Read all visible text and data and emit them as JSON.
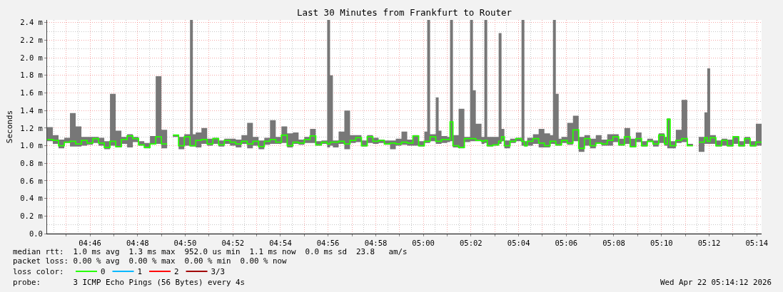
{
  "chart_data": {
    "type": "step",
    "title": "Last 30 Minutes from Frankfurt to Router",
    "ylabel": "Seconds",
    "x": [
      4.7367,
      4.7407,
      4.7447,
      4.7487,
      4.7527,
      4.7567,
      4.7607,
      4.7647,
      4.7687,
      4.7727,
      4.7767,
      4.7807,
      4.7847,
      4.7887,
      4.7927,
      4.7967,
      4.8007,
      4.8047,
      4.8087,
      4.8127,
      4.8167,
      4.8207,
      4.8227,
      4.8247,
      4.8287,
      4.8327,
      4.8367,
      4.8387,
      4.8407,
      4.8447,
      4.8487,
      4.8527,
      4.8567,
      4.8607,
      4.8647,
      4.8687,
      4.8727,
      4.8767,
      4.8807,
      4.8847,
      4.8887,
      4.8927,
      4.8967,
      4.9007,
      4.9047,
      4.9087,
      4.9127,
      4.9167,
      4.9207,
      4.9247,
      4.9287,
      4.9327,
      4.9347,
      4.9367,
      4.9407,
      4.9447,
      4.9487,
      4.9527,
      4.9567,
      4.9607,
      4.9647,
      4.9687,
      4.9727,
      4.9767,
      4.9807,
      4.9847,
      4.9887,
      4.9927,
      4.9967,
      5.0007,
      5.0027,
      5.0047,
      5.0087,
      5.0107,
      5.0127,
      5.0167,
      5.0187,
      5.0207,
      5.0247,
      5.0287,
      5.0327,
      5.0347,
      5.0367,
      5.0407,
      5.0427,
      5.0447,
      5.0487,
      5.0527,
      5.0547,
      5.0567,
      5.0607,
      5.0647,
      5.0687,
      5.0707,
      5.0727,
      5.0767,
      5.0807,
      5.0847,
      5.0887,
      5.0907,
      5.0927,
      5.0947,
      5.0967,
      5.1007,
      5.1047,
      5.1087,
      5.1127,
      5.1167,
      5.1207,
      5.1247,
      5.1287,
      5.1327,
      5.1367,
      5.1407,
      5.1447,
      5.1487,
      5.1527,
      5.1567,
      5.1607,
      5.1647,
      5.1687,
      5.1707,
      5.1727,
      5.1767,
      5.1807,
      5.1847,
      5.1887,
      5.1907,
      5.1927,
      5.1967,
      5.1987,
      5.2007,
      5.2047,
      5.2087,
      5.2127,
      5.2167,
      5.2207,
      5.2247,
      5.2287,
      5.2327,
      5.2367
    ],
    "xlim": [
      4.7367,
      5.2367
    ],
    "xticks": [
      {
        "value": 4.75,
        "label": null
      },
      {
        "value": 4.7667,
        "label": "04:46"
      },
      {
        "value": 4.7833,
        "label": null
      },
      {
        "value": 4.8,
        "label": "04:48"
      },
      {
        "value": 4.8167,
        "label": null
      },
      {
        "value": 4.8333,
        "label": "04:50"
      },
      {
        "value": 4.85,
        "label": null
      },
      {
        "value": 4.8667,
        "label": "04:52"
      },
      {
        "value": 4.8833,
        "label": null
      },
      {
        "value": 4.9,
        "label": "04:54"
      },
      {
        "value": 4.9167,
        "label": null
      },
      {
        "value": 4.9333,
        "label": "04:56"
      },
      {
        "value": 4.95,
        "label": null
      },
      {
        "value": 4.9667,
        "label": "04:58"
      },
      {
        "value": 4.9833,
        "label": null
      },
      {
        "value": 5.0,
        "label": "05:00"
      },
      {
        "value": 5.0167,
        "label": null
      },
      {
        "value": 5.0333,
        "label": "05:02"
      },
      {
        "value": 5.05,
        "label": null
      },
      {
        "value": 5.0667,
        "label": "05:04"
      },
      {
        "value": 5.0833,
        "label": null
      },
      {
        "value": 5.1,
        "label": "05:06"
      },
      {
        "value": 5.1167,
        "label": null
      },
      {
        "value": 5.1333,
        "label": "05:08"
      },
      {
        "value": 5.15,
        "label": null
      },
      {
        "value": 5.1667,
        "label": "05:10"
      },
      {
        "value": 5.1833,
        "label": null
      },
      {
        "value": 5.2,
        "label": "05:12"
      },
      {
        "value": 5.2167,
        "label": null
      },
      {
        "value": 5.2333,
        "label": "05:14"
      }
    ],
    "ylim": [
      0,
      2.43
    ],
    "yticks": [
      {
        "value": 0,
        "label": "0.0"
      },
      {
        "value": 0.2,
        "label": "0.2 m"
      },
      {
        "value": 0.4,
        "label": "0.4 m"
      },
      {
        "value": 0.6,
        "label": "0.6 m"
      },
      {
        "value": 0.8,
        "label": "0.8 m"
      },
      {
        "value": 1.0,
        "label": "1.0 m"
      },
      {
        "value": 1.2,
        "label": "1.2 m"
      },
      {
        "value": 1.4,
        "label": "1.4 m"
      },
      {
        "value": 1.6,
        "label": "1.6 m"
      },
      {
        "value": 1.8,
        "label": "1.8 m"
      },
      {
        "value": 2.0,
        "label": "2.0 m"
      },
      {
        "value": 2.2,
        "label": "2.2 m"
      },
      {
        "value": 2.4,
        "label": "2.4 m"
      }
    ],
    "grid": true,
    "legend": "bottom left",
    "series": [
      {
        "name": "0",
        "color": "#26ff00",
        "values": [
          1.07,
          1.06,
          1.0,
          1.04,
          1.05,
          1.02,
          1.06,
          1.03,
          1.08,
          1.03,
          0.98,
          1.05,
          0.99,
          1.07,
          1.11,
          1.08,
          1.01,
          0.98,
          1.02,
          1.1,
          1.02,
          1.02,
          null,
          1.12,
          1.0,
          1.1,
          1.0,
          1.0,
          1.06,
          1.07,
          1.02,
          1.08,
          1.01,
          1.06,
          1.04,
          1.02,
          1.05,
          1.02,
          1.05,
          0.99,
          1.05,
          1.07,
          1.04,
          1.12,
          1.0,
          1.04,
          1.03,
          1.07,
          1.11,
          1.01,
          1.04,
          1.02,
          1.04,
          1.04,
          1.05,
          1.02,
          1.06,
          1.09,
          1.0,
          1.1,
          1.05,
          1.06,
          1.02,
          1.03,
          1.02,
          1.04,
          1.03,
          1.11,
          1.0,
          1.05,
          1.05,
          1.1,
          1.05,
          1.05,
          1.07,
          1.07,
          1.27,
          1.0,
          0.98,
          1.08,
          1.08,
          1.08,
          1.06,
          1.05,
          1.06,
          1.0,
          1.01,
          1.05,
          1.1,
          1.0,
          1.05,
          1.08,
          1.05,
          1.0,
          1.05,
          1.08,
          1.03,
          1.0,
          1.05,
          1.05,
          1.01,
          1.01,
          1.06,
          1.03,
          1.18,
          0.97,
          1.08,
          1.0,
          1.03,
          1.02,
          1.06,
          1.1,
          1.01,
          1.1,
          0.99,
          1.08,
          1.0,
          1.05,
          1.02,
          1.12,
          1.02,
          1.3,
          1.0,
          1.06,
          1.08,
          1.0,
          1.0,
          null,
          1.04,
          1.09,
          1.05,
          1.09,
          1.0,
          1.06,
          1.0,
          1.1,
          1.0,
          1.08,
          1.0,
          1.04,
          1.04
        ],
        "lower": [
          1.05,
          1.02,
          0.97,
          1.03,
          0.99,
          0.99,
          1.0,
          1.01,
          1.03,
          1.0,
          0.96,
          1.0,
          0.98,
          1.02,
          0.98,
          1.04,
          1.0,
          0.97,
          1.02,
          1.02,
          0.97,
          0.97,
          null,
          1.1,
          0.96,
          1.0,
          0.99,
          0.99,
          0.98,
          1.02,
          1.0,
          1.02,
          0.99,
          1.02,
          1.0,
          0.98,
          1.02,
          0.97,
          1.0,
          0.96,
          1.01,
          1.02,
          1.02,
          1.03,
          0.98,
          1.02,
          1.01,
          1.03,
          1.03,
          1.0,
          1.02,
          0.98,
          1.0,
          0.98,
          1.02,
          0.96,
          1.03,
          1.04,
          0.99,
          1.03,
          1.02,
          1.03,
          1.01,
          0.96,
          1.0,
          1.01,
          1.0,
          1.0,
          0.99,
          1.03,
          1.03,
          1.05,
          1.02,
          1.02,
          1.03,
          1.04,
          1.05,
          0.98,
          0.97,
          1.04,
          1.05,
          1.05,
          1.05,
          1.02,
          1.03,
          0.99,
          1.0,
          1.02,
          1.05,
          0.97,
          1.03,
          1.05,
          1.0,
          0.99,
          1.0,
          1.02,
          0.98,
          0.98,
          1.02,
          1.02,
          1.0,
          1.0,
          1.03,
          1.01,
          1.05,
          0.93,
          1.0,
          0.97,
          1.02,
          1.0,
          1.0,
          1.04,
          1.0,
          1.02,
          0.98,
          1.04,
          0.99,
          1.04,
          0.99,
          1.03,
          1.0,
          0.97,
          0.97,
          1.03,
          1.04,
          1.0,
          1.0,
          null,
          0.93,
          1.02,
          1.02,
          1.02,
          0.99,
          1.0,
          0.99,
          1.02,
          0.99,
          1.02,
          0.99,
          1.0,
          1.0
        ],
        "upper": [
          1.21,
          1.12,
          1.07,
          1.09,
          1.37,
          1.22,
          1.1,
          1.1,
          1.1,
          1.09,
          1.05,
          1.59,
          1.17,
          1.1,
          1.13,
          1.1,
          1.05,
          1.03,
          1.11,
          1.79,
          1.18,
          1.18,
          null,
          1.12,
          1.1,
          1.13,
          2.43,
          1.13,
          1.15,
          1.2,
          1.08,
          1.09,
          1.06,
          1.08,
          1.08,
          1.07,
          1.12,
          1.26,
          1.1,
          1.06,
          1.09,
          1.29,
          1.1,
          1.22,
          1.14,
          1.15,
          1.07,
          1.1,
          1.19,
          1.05,
          1.06,
          2.43,
          1.8,
          1.06,
          1.16,
          1.4,
          1.12,
          1.12,
          1.06,
          1.12,
          1.09,
          1.07,
          1.06,
          1.06,
          1.08,
          1.16,
          1.07,
          1.12,
          1.05,
          1.16,
          2.43,
          1.13,
          1.55,
          1.17,
          1.11,
          1.1,
          2.43,
          1.12,
          1.42,
          1.1,
          2.43,
          1.63,
          1.25,
          1.1,
          2.43,
          1.1,
          1.1,
          2.28,
          1.19,
          1.06,
          1.08,
          1.09,
          2.43,
          1.05,
          1.09,
          1.13,
          1.19,
          1.14,
          1.12,
          2.43,
          1.59,
          1.08,
          1.1,
          1.26,
          1.34,
          1.1,
          1.12,
          1.08,
          1.12,
          1.07,
          1.13,
          1.13,
          1.08,
          1.2,
          1.08,
          1.15,
          1.05,
          1.08,
          1.06,
          1.14,
          1.1,
          1.31,
          1.05,
          1.18,
          1.52,
          1.02,
          1.02,
          null,
          1.1,
          1.38,
          1.88,
          1.12,
          1.06,
          1.08,
          1.07,
          1.11,
          1.05,
          1.1,
          1.05,
          1.25,
          1.25
        ]
      },
      {
        "name": "1",
        "color": "#00b8ff",
        "values": [
          null,
          null,
          null,
          null,
          null,
          null,
          null,
          null,
          null,
          null,
          null,
          null,
          null,
          null,
          null,
          null,
          null,
          null,
          null,
          null,
          null,
          null,
          null,
          null,
          null,
          null,
          null,
          null,
          null,
          null,
          null,
          null,
          null,
          null,
          null,
          null,
          null,
          null,
          null,
          null,
          null,
          null,
          null,
          null,
          null,
          null,
          null,
          null,
          null,
          null,
          null,
          null,
          null,
          null,
          null,
          null,
          null,
          null,
          null,
          null,
          null,
          null,
          null,
          null,
          null,
          null,
          null,
          null,
          null,
          null,
          null,
          null,
          null,
          null,
          null,
          null,
          null,
          null,
          null,
          null,
          null,
          null,
          null,
          null,
          null,
          null,
          null,
          null,
          null,
          null,
          null,
          null,
          null,
          null,
          null,
          null,
          null,
          null,
          null,
          null,
          null,
          null,
          null,
          null,
          null,
          null,
          null,
          null,
          null,
          null,
          null,
          null,
          null,
          null,
          null,
          null,
          null,
          null,
          null,
          null,
          null,
          null,
          null,
          null,
          null,
          null,
          null,
          null,
          null,
          null,
          null,
          null,
          null,
          null,
          null,
          null,
          null,
          null,
          null,
          null,
          null
        ]
      },
      {
        "name": "2",
        "color": "#ff0000",
        "values": [
          null,
          null,
          null,
          null,
          null,
          null,
          null,
          null,
          null,
          null,
          null,
          null,
          null,
          null,
          null,
          null,
          null,
          null,
          null,
          null,
          null,
          null,
          null,
          null,
          null,
          null,
          null,
          null,
          null,
          null,
          null,
          null,
          null,
          null,
          null,
          null,
          null,
          null,
          null,
          null,
          null,
          null,
          null,
          null,
          null,
          null,
          null,
          null,
          null,
          null,
          null,
          null,
          null,
          null,
          null,
          null,
          null,
          null,
          null,
          null,
          null,
          null,
          null,
          null,
          null,
          null,
          null,
          null,
          null,
          null,
          null,
          null,
          null,
          null,
          null,
          null,
          null,
          null,
          null,
          null,
          null,
          null,
          null,
          null,
          null,
          null,
          null,
          null,
          null,
          null,
          null,
          null,
          null,
          null,
          null,
          null,
          null,
          null,
          null,
          null,
          null,
          null,
          null,
          null,
          null,
          null,
          null,
          null,
          null,
          null,
          null,
          null,
          null,
          null,
          null,
          null,
          null,
          null,
          null,
          null,
          null,
          null,
          null,
          null,
          null,
          null,
          null,
          null,
          null,
          null,
          null,
          null,
          null,
          null,
          null,
          null,
          null,
          null,
          null,
          null,
          null
        ]
      },
      {
        "name": "3/3",
        "color": "#a10000",
        "values": [
          null,
          null,
          null,
          null,
          null,
          null,
          null,
          null,
          null,
          null,
          null,
          null,
          null,
          null,
          null,
          null,
          null,
          null,
          null,
          null,
          null,
          null,
          null,
          null,
          null,
          null,
          null,
          null,
          null,
          null,
          null,
          null,
          null,
          null,
          null,
          null,
          null,
          null,
          null,
          null,
          null,
          null,
          null,
          null,
          null,
          null,
          null,
          null,
          null,
          null,
          null,
          null,
          null,
          null,
          null,
          null,
          null,
          null,
          null,
          null,
          null,
          null,
          null,
          null,
          null,
          null,
          null,
          null,
          null,
          null,
          null,
          null,
          null,
          null,
          null,
          null,
          null,
          null,
          null,
          null,
          null,
          null,
          null,
          null,
          null,
          null,
          null,
          null,
          null,
          null,
          null,
          null,
          null,
          null,
          null,
          null,
          null,
          null,
          null,
          null,
          null,
          null,
          null,
          null,
          null,
          null,
          null,
          null,
          null,
          null,
          null,
          null,
          null,
          null,
          null,
          null,
          null,
          null,
          null,
          null,
          null,
          null,
          null,
          null,
          null,
          null,
          null,
          null,
          null,
          null,
          null,
          null,
          null,
          null,
          null,
          null,
          null,
          null,
          null,
          null,
          null
        ]
      }
    ],
    "annotations": [
      "median rtt:  1.0 ms avg  1.3 ms max  952.0 us min  1.1 ms now  0.0 ms sd  23.8   am/s",
      "packet loss: 0.00 % avg  0.00 % max  0.00 % min  0.00 % now",
      "loss color:",
      "probe:       3 ICMP Echo Pings (56 Bytes) every 4s",
      "Wed Apr 22 05:14:12 2026"
    ]
  }
}
